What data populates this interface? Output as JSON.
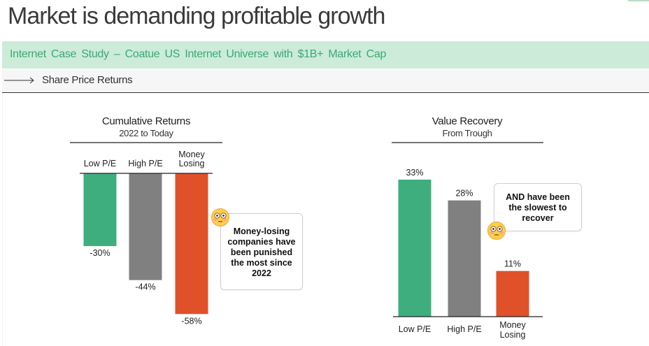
{
  "page": {
    "title": "Market is demanding profitable growth",
    "subtitle": "Internet Case Study – Coatue US Internet Universe with $1B+ Market Cap",
    "section_label": "Share Price Returns"
  },
  "colors": {
    "green": "#3fae7f",
    "gray": "#808080",
    "orange": "#e0512a",
    "subtitle_band": "#ccebd9",
    "subtitle_text": "#3ba973"
  },
  "chart_data": [
    {
      "type": "bar",
      "title": "Cumulative Returns",
      "subtitle": "2022 to Today",
      "categories": [
        "Low P/E",
        "High P/E",
        "Money Losing"
      ],
      "values": [
        -30,
        -44,
        -58
      ],
      "value_labels": [
        "-30%",
        "-44%",
        "-58%"
      ],
      "colors": [
        "#3fae7f",
        "#808080",
        "#e0512a"
      ],
      "ylim": [
        -60,
        0
      ],
      "category_position": "top"
    },
    {
      "type": "bar",
      "title": "Value Recovery",
      "subtitle": "From Trough",
      "categories": [
        "Low P/E",
        "High P/E",
        "Money Losing"
      ],
      "values": [
        33,
        28,
        11
      ],
      "value_labels": [
        "33%",
        "28%",
        "11%"
      ],
      "colors": [
        "#3fae7f",
        "#808080",
        "#e0512a"
      ],
      "ylim": [
        0,
        35
      ],
      "category_position": "bottom"
    }
  ],
  "callouts": [
    {
      "text": "Money-losing companies have been punished the most since 2022",
      "emoji": "flushed-face"
    },
    {
      "text": "AND have been the slowest to recover",
      "emoji": "flushed-face"
    }
  ]
}
